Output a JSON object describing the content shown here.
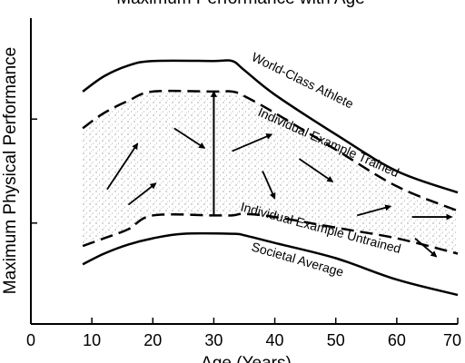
{
  "chart_data": {
    "type": "line",
    "title": "Maximum Performance with Age",
    "xlabel": "Age (Years)",
    "ylabel": "Maximum Physical Performance",
    "xlim": [
      0,
      70
    ],
    "ylim": [
      0,
      100
    ],
    "xticks": [
      0,
      10,
      20,
      30,
      40,
      50,
      60,
      70
    ],
    "yticks": [
      33,
      67
    ],
    "grid": false,
    "series": [
      {
        "name": "World-Class Athlete",
        "style": "solid",
        "points": [
          [
            8.5,
            76
          ],
          [
            12,
            81
          ],
          [
            16,
            84.5
          ],
          [
            20,
            86
          ],
          [
            30,
            86
          ],
          [
            33,
            86
          ],
          [
            35,
            83
          ],
          [
            40,
            75
          ],
          [
            50,
            62
          ],
          [
            60,
            50
          ],
          [
            70,
            43
          ]
        ]
      },
      {
        "name": "Individual Example Trained",
        "style": "dashed",
        "points": [
          [
            8.5,
            64
          ],
          [
            12,
            69
          ],
          [
            16,
            73
          ],
          [
            20,
            76
          ],
          [
            30,
            76
          ],
          [
            33,
            76
          ],
          [
            35,
            74.5
          ],
          [
            40,
            69
          ],
          [
            50,
            57
          ],
          [
            60,
            45
          ],
          [
            70,
            37
          ]
        ]
      },
      {
        "name": "Individual Example Untrained",
        "style": "dashed",
        "points": [
          [
            8.5,
            25.5
          ],
          [
            12,
            28
          ],
          [
            16,
            31
          ],
          [
            20,
            35.5
          ],
          [
            30,
            35.5
          ],
          [
            33,
            35.5
          ],
          [
            35,
            36
          ],
          [
            40,
            35
          ],
          [
            50,
            31.5
          ],
          [
            60,
            28
          ],
          [
            70,
            23
          ]
        ]
      },
      {
        "name": "Societal Average",
        "style": "solid",
        "points": [
          [
            8.5,
            19.5
          ],
          [
            12,
            23
          ],
          [
            16,
            26
          ],
          [
            20,
            28
          ],
          [
            25,
            29.5
          ],
          [
            33,
            29.5
          ],
          [
            35,
            29
          ],
          [
            40,
            26.5
          ],
          [
            50,
            21.5
          ],
          [
            60,
            14.5
          ],
          [
            70,
            9.5
          ]
        ]
      }
    ],
    "fill_between": [
      "Individual Example Trained",
      "Individual Example Untrained"
    ],
    "vertical_arrow": {
      "x": 30,
      "y_from": 35.5,
      "y_to": 76
    },
    "arrows": [
      {
        "from": [
          12.5,
          44
        ],
        "to": [
          17.5,
          59
        ]
      },
      {
        "from": [
          16,
          39
        ],
        "to": [
          20.5,
          46
        ]
      },
      {
        "from": [
          23.5,
          64
        ],
        "to": [
          28.5,
          57.5
        ]
      },
      {
        "from": [
          33,
          56.5
        ],
        "to": [
          39.5,
          62
        ]
      },
      {
        "from": [
          38,
          50
        ],
        "to": [
          40,
          41
        ]
      },
      {
        "from": [
          44,
          54
        ],
        "to": [
          49.5,
          46.5
        ]
      },
      {
        "from": [
          53.5,
          35.5
        ],
        "to": [
          59,
          38.5
        ]
      },
      {
        "from": [
          62.5,
          35
        ],
        "to": [
          69,
          35
        ]
      },
      {
        "from": [
          63,
          28
        ],
        "to": [
          66.5,
          22
        ]
      }
    ]
  }
}
